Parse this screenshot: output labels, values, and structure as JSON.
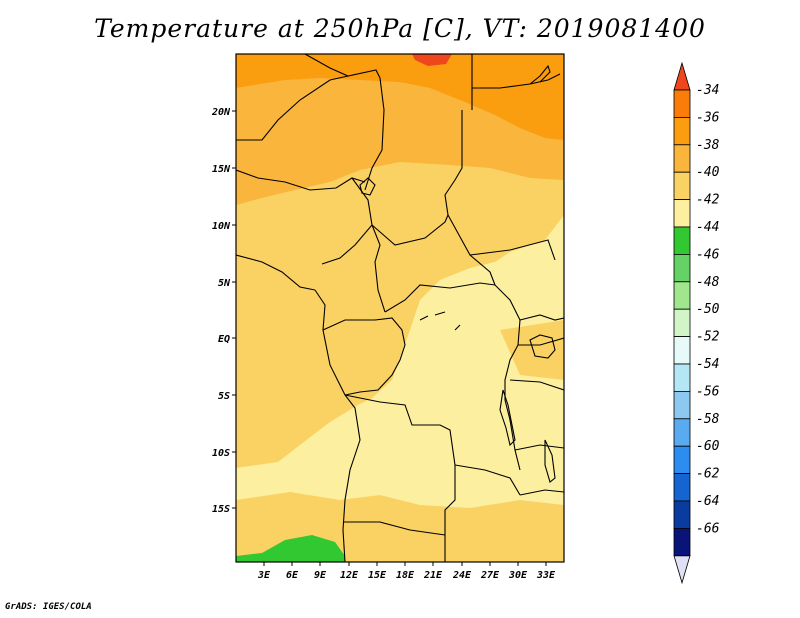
{
  "title": "Temperature at 250hPa [C], VT: 2019081400",
  "credit": "GrADS: IGES/COLA",
  "lat_labels": [
    "20N",
    "15N",
    "10N",
    "5N",
    "EQ",
    "5S",
    "10S",
    "15S"
  ],
  "lon_labels": [
    "3E",
    "6E",
    "9E",
    "12E",
    "15E",
    "18E",
    "21E",
    "24E",
    "27E",
    "30E",
    "33E"
  ],
  "colorbar": {
    "labels": [
      "-34",
      "-36",
      "-38",
      "-40",
      "-42",
      "-44",
      "-46",
      "-48",
      "-50",
      "-52",
      "-54",
      "-56",
      "-58",
      "-60",
      "-62",
      "-64",
      "-66"
    ],
    "colors": [
      "#f0461e",
      "#fa7d0a",
      "#fa9d0f",
      "#fab53c",
      "#fad264",
      "#fcf0a0",
      "#32c832",
      "#64d264",
      "#a0e68c",
      "#d2f5c8",
      "#e6fafa",
      "#b4e6f5",
      "#8cc8f0",
      "#5aaaf0",
      "#2d8cf0",
      "#1464d2",
      "#0a3ca0",
      "#0a1478",
      "#e1e1f5"
    ]
  },
  "field_colors": {
    "t38": "#fa9d0f",
    "t40": "#fab53c",
    "t42": "#fad264",
    "t44": "#fcf0a0",
    "t46": "#32c832",
    "t36": "#f0461e"
  }
}
